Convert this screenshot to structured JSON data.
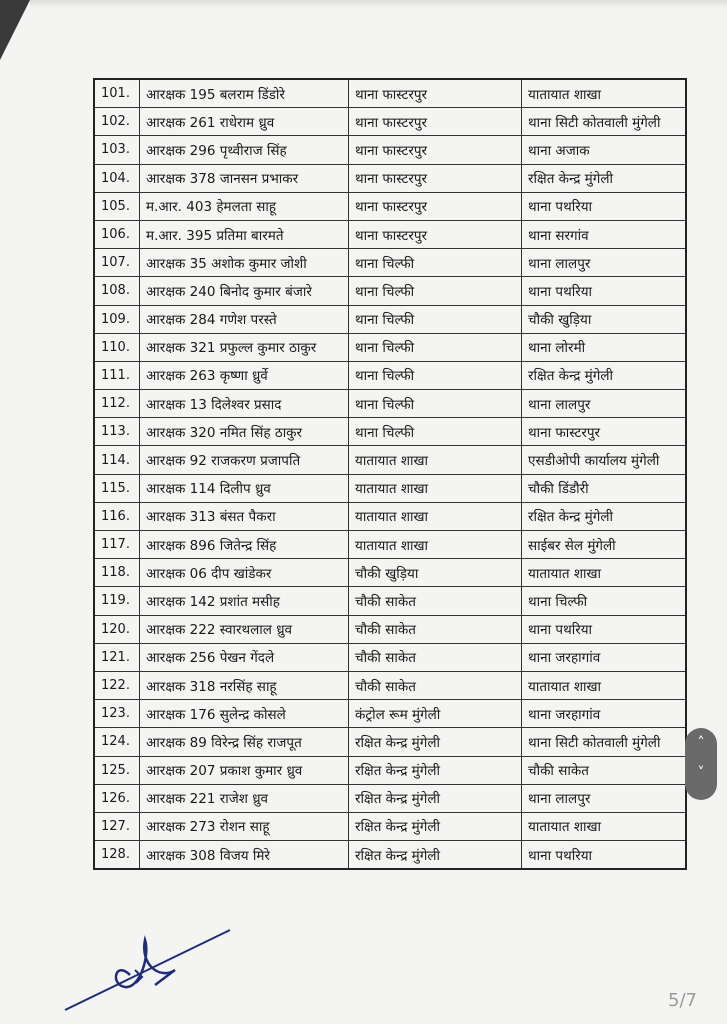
{
  "page_indicator": "5/7",
  "rows": [
    [
      "101.",
      "आरक्षक 195 बलराम डिंडोरे",
      "थाना फास्टरपुर",
      "यातायात शाखा"
    ],
    [
      "102.",
      "आरक्षक 261 राधेराम ध्रुव",
      "थाना फास्टरपुर",
      "थाना सिटी कोतवाली मुंगेली"
    ],
    [
      "103.",
      "आरक्षक 296 पृथ्वीराज सिंह",
      "थाना फास्टरपुर",
      "थाना अजाक"
    ],
    [
      "104.",
      "आरक्षक 378 जानसन प्रभाकर",
      "थाना फास्टरपुर",
      "रक्षित केन्द्र मुंगेली"
    ],
    [
      "105.",
      "म.आर. 403 हेमलता साहू",
      "थाना फास्टरपुर",
      "थाना पथरिया"
    ],
    [
      "106.",
      "म.आर. 395 प्रतिमा बारमते",
      "थाना फास्टरपुर",
      "थाना सरगांव"
    ],
    [
      "107.",
      "आरक्षक 35 अशोक कुमार जोशी",
      "थाना चिल्फी",
      "थाना लालपुर"
    ],
    [
      "108.",
      "आरक्षक 240 बिनोद कुमार बंजारे",
      "थाना चिल्फी",
      "थाना पथरिया"
    ],
    [
      "109.",
      "आरक्षक 284 गणेश परस्ते",
      "थाना चिल्फी",
      "चौकी खुड़िया"
    ],
    [
      "110.",
      "आरक्षक 321 प्रफुल्ल कुमार ठाकुर",
      "थाना चिल्फी",
      "थाना लोरमी"
    ],
    [
      "111.",
      "आरक्षक 263 कृष्णा ध्रुर्वे",
      "थाना चिल्फी",
      "रक्षित केन्द्र मुंगेली"
    ],
    [
      "112.",
      "आरक्षक 13 दिलेश्वर प्रसाद",
      "थाना चिल्फी",
      "थाना लालपुर"
    ],
    [
      "113.",
      "आरक्षक 320 नमित सिंह ठाकुर",
      "थाना चिल्फी",
      "थाना फास्टरपुर"
    ],
    [
      "114.",
      "आरक्षक 92 राजकरण प्रजापति",
      "यातायात शाखा",
      "एसडीओपी कार्यालय मुंगेली"
    ],
    [
      "115.",
      "आरक्षक 114 दिलीप ध्रुव",
      "यातायात शाखा",
      "चौकी डिंडौरी"
    ],
    [
      "116.",
      "आरक्षक 313 बंसत पैकरा",
      "यातायात शाखा",
      "रक्षित केन्द्र मुंगेली"
    ],
    [
      "117.",
      "आरक्षक 896 जितेन्द्र सिंह",
      "यातायात शाखा",
      "साईबर सेल मुंगेली"
    ],
    [
      "118.",
      "आरक्षक 06 दीप खांडेकर",
      "चौकी खुड़िया",
      "यातायात शाखा"
    ],
    [
      "119.",
      "आरक्षक 142 प्रशांत मसीह",
      "चौकी साकेत",
      "थाना चिल्फी"
    ],
    [
      "120.",
      "आरक्षक 222 स्वारथलाल ध्रुव",
      "चौकी साकेत",
      "थाना पथरिया"
    ],
    [
      "121.",
      "आरक्षक 256 पेखन गेंदले",
      "चौकी साकेत",
      "थाना जरहागांव"
    ],
    [
      "122.",
      "आरक्षक 318 नरसिंह साहू",
      "चौकी साकेत",
      "यातायात शाखा"
    ],
    [
      "123.",
      "आरक्षक 176 सुलेन्द्र कोसले",
      "कंट्रोल रूम मुंगेली",
      "थाना जरहागांव"
    ],
    [
      "124.",
      "आरक्षक 89 विरेन्द्र सिंह राजपूत",
      "रक्षित केन्द्र मुंगेली",
      "थाना सिटी कोतवाली मुंगेली"
    ],
    [
      "125.",
      "आरक्षक 207 प्रकाश कुमार ध्रुव",
      "रक्षित केन्द्र मुंगेली",
      "चौकी साकेत"
    ],
    [
      "126.",
      "आरक्षक 221 राजेश ध्रुव",
      "रक्षित केन्द्र मुंगेली",
      "थाना लालपुर"
    ],
    [
      "127.",
      "आरक्षक 273 रोशन साहू",
      "रक्षित केन्द्र मुंगेली",
      "यातायात शाखा"
    ],
    [
      "128.",
      "आरक्षक 308 विजय मिरे",
      "रक्षित केन्द्र मुंगेली",
      "थाना पथरिया"
    ]
  ],
  "scroll": {
    "up_icon": "chevron-up-icon",
    "down_icon": "chevron-down-icon",
    "up_glyph": "˄",
    "down_glyph": "˅"
  }
}
